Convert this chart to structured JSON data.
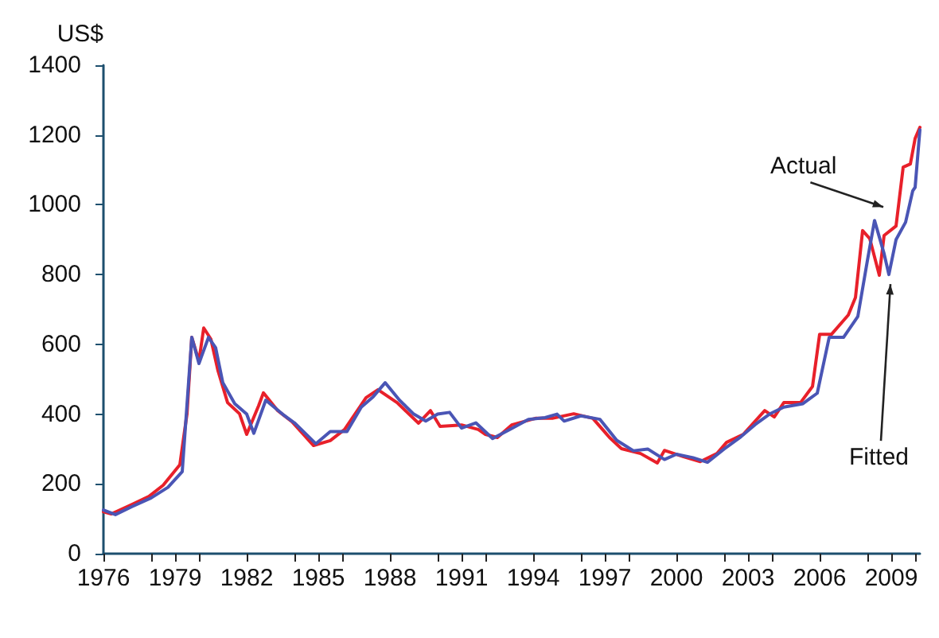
{
  "chart_data": {
    "type": "line",
    "ylabel": "US$",
    "xlim": [
      1976,
      2010.2
    ],
    "ylim": [
      0,
      1400
    ],
    "yticks": [
      0,
      200,
      400,
      600,
      800,
      1000,
      1200,
      1400
    ],
    "xticks": [
      {
        "value": 1976,
        "label": "1976"
      },
      {
        "value": 1978,
        "label": null
      },
      {
        "value": 1979,
        "label": "1979"
      },
      {
        "value": 1980,
        "label": null
      },
      {
        "value": 1982,
        "label": "1982"
      },
      {
        "value": 1984,
        "label": null
      },
      {
        "value": 1985,
        "label": "1985"
      },
      {
        "value": 1986,
        "label": null
      },
      {
        "value": 1988,
        "label": "1988"
      },
      {
        "value": 1990,
        "label": null
      },
      {
        "value": 1991,
        "label": "1991"
      },
      {
        "value": 1992,
        "label": null
      },
      {
        "value": 1994,
        "label": "1994"
      },
      {
        "value": 1996,
        "label": null
      },
      {
        "value": 1997,
        "label": "1997"
      },
      {
        "value": 1998,
        "label": null
      },
      {
        "value": 2000,
        "label": "2000"
      },
      {
        "value": 2002,
        "label": null
      },
      {
        "value": 2003,
        "label": "2003"
      },
      {
        "value": 2004,
        "label": null
      },
      {
        "value": 2006,
        "label": "2006"
      },
      {
        "value": 2008,
        "label": null
      },
      {
        "value": 2009,
        "label": "2009"
      },
      {
        "value": 2010,
        "label": null
      }
    ],
    "grid": false,
    "legend": false,
    "marker": "none",
    "line_style": "solid",
    "series": [
      {
        "name": "Actual",
        "color": "#e8202a",
        "x": [
          1976.0,
          1976.33,
          1977.2,
          1977.9,
          1978.5,
          1979.2,
          1979.5,
          1979.7,
          1980.0,
          1980.2,
          1980.5,
          1980.8,
          1981.2,
          1981.7,
          1982.0,
          1982.5,
          1982.7,
          1983.3,
          1983.9,
          1984.8,
          1985.5,
          1986.1,
          1987.0,
          1987.5,
          1988.3,
          1989.2,
          1989.7,
          1990.1,
          1991.0,
          1991.7,
          1992.0,
          1992.5,
          1993.1,
          1994.1,
          1994.8,
          1995.7,
          1996.5,
          1997.2,
          1997.7,
          1998.5,
          1999.2,
          1999.5,
          2000.3,
          2001.0,
          2001.7,
          2002.1,
          2002.8,
          2003.7,
          2004.1,
          2004.5,
          2005.2,
          2005.7,
          2006.0,
          2006.5,
          2007.2,
          2007.5,
          2007.8,
          2008.1,
          2008.5,
          2008.7,
          2009.2,
          2009.5,
          2009.8,
          2010.0,
          2010.2
        ],
        "values": [
          120,
          114,
          141,
          164,
          196,
          255,
          401,
          620,
          552,
          647,
          615,
          524,
          433,
          401,
          342,
          424,
          461,
          410,
          378,
          310,
          324,
          356,
          447,
          470,
          433,
          374,
          410,
          365,
          369,
          356,
          342,
          333,
          369,
          388,
          388,
          401,
          388,
          333,
          301,
          287,
          260,
          296,
          278,
          264,
          287,
          319,
          342,
          410,
          392,
          433,
          433,
          479,
          629,
          629,
          684,
          734,
          926,
          903,
          798,
          912,
          939,
          1108,
          1117,
          1190,
          1222
        ]
      },
      {
        "name": "Fitted",
        "color": "#4a55b5",
        "x": [
          1976.0,
          1976.5,
          1977.2,
          1978.0,
          1978.7,
          1979.3,
          1979.7,
          1980.0,
          1980.4,
          1980.7,
          1981.0,
          1981.5,
          1982.0,
          1982.3,
          1982.8,
          1983.5,
          1984.0,
          1984.9,
          1985.5,
          1986.2,
          1986.8,
          1987.3,
          1987.8,
          1988.4,
          1989.0,
          1989.5,
          1990.0,
          1990.5,
          1991.0,
          1991.6,
          1992.3,
          1993.0,
          1993.8,
          1994.5,
          1995.0,
          1995.3,
          1996.0,
          1996.8,
          1997.5,
          1998.2,
          1998.8,
          1999.5,
          2000.0,
          2000.7,
          2001.3,
          2002.0,
          2002.7,
          2003.3,
          2003.9,
          2004.5,
          2005.3,
          2005.9,
          2006.4,
          2007.0,
          2007.6,
          2008.0,
          2008.3,
          2008.7,
          2008.9,
          2009.2,
          2009.6,
          2009.9,
          2010.0,
          2010.2
        ],
        "values": [
          125,
          112,
          135,
          160,
          190,
          235,
          620,
          545,
          620,
          590,
          490,
          430,
          400,
          345,
          440,
          400,
          375,
          315,
          350,
          350,
          420,
          450,
          490,
          440,
          400,
          380,
          400,
          405,
          360,
          375,
          330,
          355,
          385,
          390,
          400,
          380,
          395,
          385,
          325,
          295,
          300,
          270,
          285,
          275,
          262,
          300,
          335,
          370,
          400,
          420,
          430,
          460,
          620,
          620,
          680,
          840,
          955,
          860,
          800,
          900,
          950,
          1040,
          1050,
          1215
        ]
      }
    ]
  }
}
